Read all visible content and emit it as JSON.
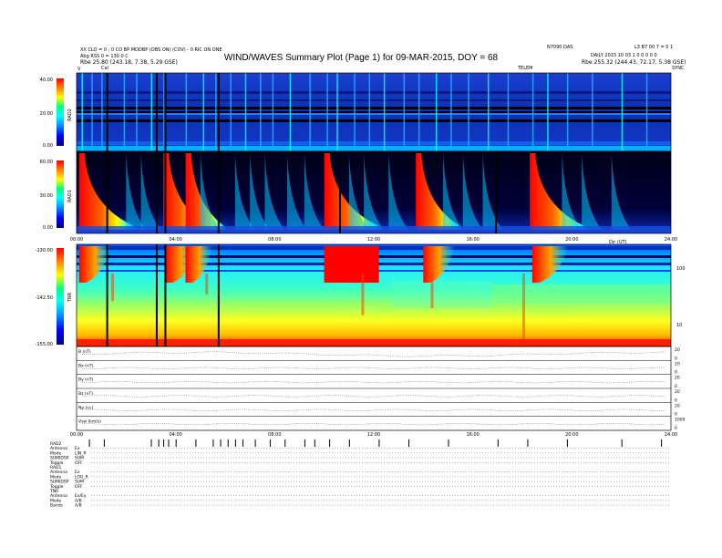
{
  "header": {
    "line1_left": "XX CLO = 0 ; 0 CO BP MODBP (OBS ON) (COV) - 0 RIC ON ONE",
    "line2_left": "Abg RSS 0 = 130 0 C",
    "file_left": "Rbe    25.80 (243.18, 7.38, 5.29 GSE)",
    "title": "WIND/WAVES Summary Plot (Page 1) for 09-MAR-2015, DOY = 68",
    "right_top": "N7090 DAS",
    "right_mid": "DAILY  2015 10 03 1 0 0 0 0 0",
    "right_id": "L3 B7 00 7 = 0 1",
    "file_right": "Rbe    255.32 (244.43, 72.17, 5.38 GSE)",
    "marker_left": "V",
    "marker_cal": "Cal",
    "marker_mid": "TELEM",
    "marker_right": "SYNC"
  },
  "chart_data": [
    {
      "type": "heatmap",
      "name": "RAD2",
      "ylabel": "RAD2",
      "ylim": [
        0,
        40
      ],
      "yticks": [
        "40.00",
        "20.00",
        "0.00"
      ],
      "xlim": [
        0,
        24
      ],
      "burst_hours": [
        1.2,
        3.5,
        5.6,
        10.1,
        13.8,
        18.4
      ],
      "data_gaps_hours": [
        1.2,
        3.55,
        5.7
      ]
    },
    {
      "type": "heatmap",
      "name": "RAD1",
      "ylabel": "RAD1",
      "ylim": [
        0,
        60
      ],
      "yticks": [
        "60.00",
        "30.00",
        "0.00"
      ],
      "xlim": [
        0,
        24
      ],
      "xticks": [
        "00:00",
        "04:00",
        "08:00",
        "12:00",
        "16:00",
        "20:00",
        "24:00"
      ],
      "xlabel_right": "Dir (UT)",
      "strong_bursts": [
        {
          "start_hour": 0.1,
          "intensity": 1.0
        },
        {
          "start_hour": 3.5,
          "intensity": 0.8
        },
        {
          "start_hour": 4.4,
          "intensity": 0.7
        },
        {
          "start_hour": 10.0,
          "intensity": 1.0
        },
        {
          "start_hour": 13.7,
          "intensity": 0.8
        },
        {
          "start_hour": 18.3,
          "intensity": 1.0
        }
      ]
    },
    {
      "type": "heatmap",
      "name": "TNR",
      "ylabel": "TNR",
      "ylim": [
        -155,
        -130
      ],
      "yticks": [
        "-130.00",
        "-142.50",
        "-155.00"
      ],
      "right_ticks": [
        "100",
        "10"
      ],
      "xlim": [
        0,
        24
      ]
    },
    {
      "type": "line",
      "name": "stacked parameter panels",
      "xlim": [
        0,
        24
      ],
      "xticks": [
        "00:00",
        "04:00",
        "08:00",
        "12:00",
        "16:00",
        "20:00",
        "24:00"
      ],
      "series": [
        {
          "name": "B (nT)",
          "right_ticks": [
            "20",
            "0"
          ]
        },
        {
          "name": "Bx (nT)",
          "right_ticks": [
            "20",
            "0"
          ]
        },
        {
          "name": "By (nT)",
          "right_ticks": [
            "20",
            "0"
          ]
        },
        {
          "name": "Bz (nT)",
          "right_ticks": [
            "20",
            "0"
          ]
        },
        {
          "name": "Np (cc)",
          "right_ticks": [
            "20",
            "0"
          ]
        },
        {
          "name": "Vsw (km/s)",
          "right_ticks": [
            "1000",
            "0"
          ]
        }
      ]
    }
  ],
  "status": {
    "blocks": [
      {
        "title": "RAD2",
        "rows": [
          {
            "label": "Antenna",
            "value": "Ex"
          },
          {
            "label": "Mode",
            "value": "LIN_R"
          },
          {
            "label": "SUMIDSP",
            "value": "SUM"
          },
          {
            "label": "Toggle",
            "value": "OFF"
          }
        ]
      },
      {
        "title": "RAD1",
        "rows": [
          {
            "label": "Antenna",
            "value": "Ex"
          },
          {
            "label": "Mode",
            "value": "LOG_R"
          },
          {
            "label": "SUMIDSP",
            "value": "SUM"
          },
          {
            "label": "Toggle",
            "value": "OFF"
          }
        ]
      },
      {
        "title": "TNR",
        "rows": [
          {
            "label": "Antenna",
            "value": "Ex/Ey"
          },
          {
            "label": "Mode",
            "value": "A/B"
          },
          {
            "label": "Bands",
            "value": "A/B"
          }
        ]
      }
    ]
  },
  "colors": {
    "colorbar": [
      "#000080",
      "#0000ff",
      "#00a0ff",
      "#00ffff",
      "#00ff80",
      "#ffff00",
      "#ff8000",
      "#ff0000"
    ],
    "background_low": "#0c2fb4",
    "background_high": "#ff0000"
  }
}
